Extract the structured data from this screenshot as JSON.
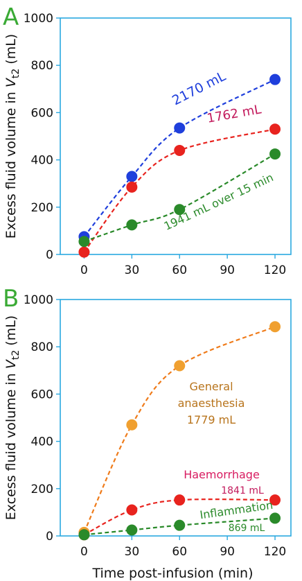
{
  "chart_data": [
    {
      "type": "line",
      "panel_label": "A",
      "ylabel": "Excess fluid volume in Vt2 (mL)",
      "xlabel": "",
      "x": [
        0,
        30,
        60,
        90,
        120
      ],
      "xlim": [
        -15,
        130
      ],
      "ylim": [
        0,
        1000
      ],
      "yticks": [
        0,
        200,
        400,
        600,
        800,
        1000
      ],
      "xticks": [
        0,
        30,
        60,
        90,
        120
      ],
      "series": [
        {
          "name": "2170 mL",
          "color": "#1f3fdc",
          "x": [
            0,
            30,
            60,
            120
          ],
          "values": [
            75,
            330,
            535,
            740
          ]
        },
        {
          "name": "1762 mL",
          "color": "#e8231e",
          "x": [
            0,
            30,
            60,
            120
          ],
          "values": [
            10,
            285,
            440,
            530
          ]
        },
        {
          "name": "1941 mL over 15 min",
          "color": "#2a8a2a",
          "x": [
            0,
            30,
            60,
            120
          ],
          "values": [
            55,
            125,
            190,
            425
          ]
        }
      ],
      "annotations": [
        {
          "text": "2170 mL",
          "color": "#1f3fdc"
        },
        {
          "text": "1762 mL",
          "color": "#c2185b"
        },
        {
          "text": "1941 mL over 15 min",
          "color": "#2a8a2a"
        }
      ]
    },
    {
      "type": "line",
      "panel_label": "B",
      "ylabel": "Excess fluid volume in Vt2 (mL)",
      "xlabel": "Time post-infusion (min)",
      "x": [
        0,
        30,
        60,
        90,
        120
      ],
      "xlim": [
        -15,
        130
      ],
      "ylim": [
        0,
        1000
      ],
      "yticks": [
        0,
        200,
        400,
        600,
        800,
        1000
      ],
      "xticks": [
        0,
        30,
        60,
        90,
        120
      ],
      "series": [
        {
          "name": "General anaesthesia 1779 mL",
          "color": "#ef7b1a",
          "marker": "#f0a030",
          "x": [
            0,
            30,
            60,
            120
          ],
          "values": [
            15,
            470,
            720,
            885
          ]
        },
        {
          "name": "Haemorrhage 1841 mL",
          "color": "#e8231e",
          "marker": "#e8231e",
          "x": [
            0,
            30,
            60,
            120
          ],
          "values": [
            5,
            110,
            152,
            152
          ]
        },
        {
          "name": "Inflammation 869 mL",
          "color": "#2a8a2a",
          "marker": "#2a8a2a",
          "x": [
            0,
            30,
            60,
            120
          ],
          "values": [
            5,
            25,
            45,
            75
          ]
        }
      ],
      "annotations": [
        {
          "text": "General",
          "color": "#b8741c"
        },
        {
          "text": "anaesthesia",
          "color": "#b8741c"
        },
        {
          "text": "1779 mL",
          "color": "#b8741c"
        },
        {
          "text": "Haemorrhage",
          "color": "#d81b60"
        },
        {
          "text": "1841 mL",
          "color": "#c2185b"
        },
        {
          "text": "Inflammation",
          "color": "#2a8a2a"
        },
        {
          "text": "869 mL",
          "color": "#2a8a2a"
        }
      ]
    }
  ],
  "colors": {
    "frame": "#29a8e0",
    "panel_letter": "#3aaa35",
    "text": "#111111"
  }
}
